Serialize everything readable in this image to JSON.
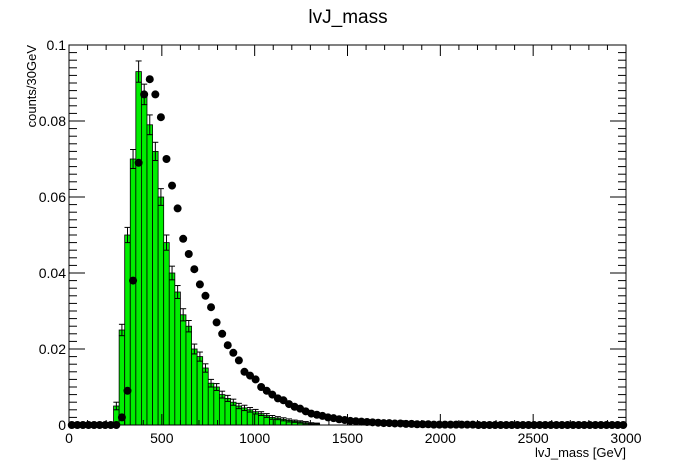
{
  "chart_data": {
    "type": "bar",
    "title": "lvJ_mass",
    "xlabel": "lvJ_mass [GeV]",
    "ylabel": "counts/30GeV",
    "xlim": [
      0,
      3000
    ],
    "ylim": [
      0,
      0.1
    ],
    "bin_width": 30,
    "grid": false,
    "legend": "none",
    "x_ticks": [
      "0",
      "500",
      "1000",
      "1500",
      "2000",
      "2500",
      "3000"
    ],
    "y_ticks": [
      "0",
      "0.02",
      "0.04",
      "0.06",
      "0.08",
      "0.1"
    ],
    "colors": {
      "fill": "#00ee00",
      "outline": "#000000",
      "points": "#000000",
      "error_bars": "#000000"
    },
    "series": [
      {
        "kind": "filled-histogram",
        "x_centers": [
          255,
          285,
          315,
          345,
          375,
          405,
          435,
          465,
          495,
          525,
          555,
          585,
          615,
          645,
          675,
          705,
          735,
          765,
          795,
          825,
          855,
          885,
          915,
          945,
          975,
          1005,
          1035,
          1065,
          1095,
          1125,
          1155,
          1185,
          1215,
          1245,
          1275,
          1305,
          1335
        ],
        "values": [
          0.005,
          0.025,
          0.05,
          0.07,
          0.093,
          0.087,
          0.079,
          0.072,
          0.06,
          0.048,
          0.04,
          0.035,
          0.029,
          0.026,
          0.02,
          0.018,
          0.015,
          0.011,
          0.01,
          0.008,
          0.007,
          0.006,
          0.005,
          0.0045,
          0.004,
          0.0035,
          0.003,
          0.0025,
          0.002,
          0.0018,
          0.0015,
          0.0012,
          0.001,
          0.0008,
          0.0006,
          0.0004,
          0.0003
        ],
        "errors": [
          0.001,
          0.0015,
          0.002,
          0.0025,
          0.0028,
          0.0027,
          0.0026,
          0.0024,
          0.0022,
          0.002,
          0.0018,
          0.0017,
          0.0016,
          0.0015,
          0.0013,
          0.0012,
          0.0011,
          0.001,
          0.0009,
          0.0009,
          0.0008,
          0.0008,
          0.0007,
          0.0007,
          0.0006,
          0.0006,
          0.0005,
          0.0005,
          0.0005,
          0.0004,
          0.0004,
          0.0004,
          0.0003,
          0.0003,
          0.0003,
          0.0002,
          0.0002
        ]
      },
      {
        "kind": "points",
        "x": [
          15,
          45,
          75,
          105,
          135,
          165,
          195,
          225,
          255,
          285,
          315,
          345,
          375,
          405,
          435,
          465,
          495,
          525,
          555,
          585,
          615,
          645,
          675,
          705,
          735,
          765,
          795,
          825,
          855,
          885,
          915,
          945,
          975,
          1005,
          1035,
          1065,
          1095,
          1125,
          1155,
          1185,
          1215,
          1245,
          1275,
          1305,
          1335,
          1365,
          1395,
          1425,
          1455,
          1485,
          1515,
          1545,
          1575,
          1605,
          1635,
          1665,
          1695,
          1725,
          1755,
          1785,
          1815,
          1845,
          1875,
          1905,
          1935,
          1965,
          1995,
          2025,
          2055,
          2085,
          2115,
          2145,
          2175,
          2205,
          2235,
          2265,
          2295,
          2325,
          2355,
          2385,
          2415,
          2445,
          2475,
          2505,
          2535,
          2565,
          2595,
          2625,
          2655,
          2685,
          2715,
          2745,
          2775,
          2805,
          2835,
          2865,
          2895,
          2925,
          2955,
          2985
        ],
        "y": [
          0,
          0,
          0,
          0,
          0,
          0,
          0,
          0,
          0,
          0.002,
          0.009,
          0.038,
          0.069,
          0.087,
          0.091,
          0.087,
          0.081,
          0.07,
          0.063,
          0.057,
          0.049,
          0.045,
          0.041,
          0.037,
          0.034,
          0.031,
          0.027,
          0.024,
          0.021,
          0.019,
          0.017,
          0.014,
          0.013,
          0.012,
          0.01,
          0.009,
          0.008,
          0.007,
          0.0065,
          0.0055,
          0.0048,
          0.0043,
          0.0036,
          0.003,
          0.0027,
          0.0024,
          0.002,
          0.0018,
          0.0015,
          0.0013,
          0.0011,
          0.001,
          0.0009,
          0.0008,
          0.0007,
          0.0006,
          0.0005,
          0.0005,
          0.0004,
          0.0004,
          0.0003,
          0.0003,
          0.0002,
          0.0002,
          0.0002,
          0.0001,
          0.0001,
          0.0001,
          0.0001,
          0.0001,
          0.0001,
          0.0001,
          0.0001,
          0,
          0,
          0,
          0,
          0,
          0,
          0,
          0,
          0,
          0,
          0,
          0,
          0,
          0,
          0,
          0,
          0,
          0,
          0,
          0,
          0,
          0,
          0,
          0,
          0,
          0,
          0
        ]
      }
    ]
  }
}
